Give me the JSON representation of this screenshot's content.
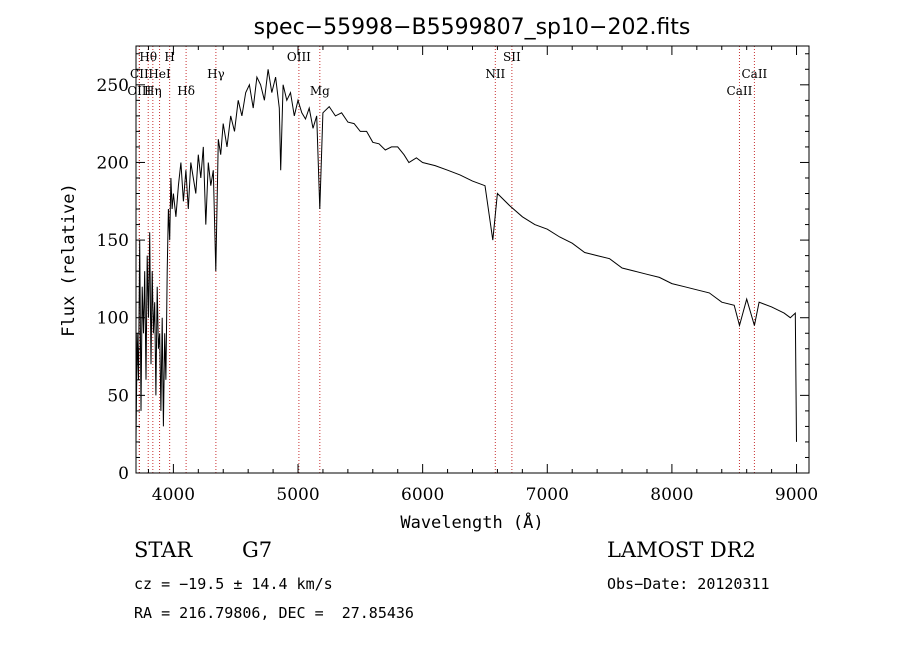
{
  "chart_data": {
    "type": "line",
    "title": "spec−55998−B5599807_sp10−202.fits",
    "xlabel": "Wavelength (Å)",
    "ylabel": "Flux (relative)",
    "xlim": [
      3700,
      9100
    ],
    "ylim": [
      0,
      275
    ],
    "xticks": [
      4000,
      5000,
      6000,
      7000,
      8000,
      9000
    ],
    "yticks": [
      0,
      50,
      100,
      150,
      200,
      250
    ],
    "xtick_labels": [
      "4000",
      "5000",
      "6000",
      "7000",
      "8000",
      "9000"
    ],
    "ytick_labels": [
      "0",
      "50",
      "100",
      "150",
      "200",
      "250"
    ],
    "line_color": "#000000",
    "marker_color": "#c83232",
    "series": [
      {
        "x": [
          3700,
          3710,
          3720,
          3730,
          3740,
          3750,
          3760,
          3770,
          3780,
          3790,
          3800,
          3810,
          3820,
          3830,
          3840,
          3850,
          3860,
          3870,
          3880,
          3890,
          3900,
          3910,
          3920,
          3930,
          3940,
          3950,
          3960,
          3970,
          3980,
          3990,
          4000,
          4020,
          4040,
          4060,
          4080,
          4100,
          4120,
          4140,
          4160,
          4180,
          4200,
          4220,
          4240,
          4260,
          4280,
          4300,
          4320,
          4340,
          4360,
          4380,
          4400,
          4430,
          4460,
          4490,
          4520,
          4550,
          4580,
          4610,
          4640,
          4670,
          4700,
          4730,
          4760,
          4790,
          4820,
          4850,
          4861,
          4880,
          4910,
          4940,
          4970,
          5000,
          5030,
          5060,
          5090,
          5120,
          5150,
          5175,
          5200,
          5250,
          5300,
          5350,
          5400,
          5450,
          5500,
          5550,
          5600,
          5650,
          5700,
          5750,
          5800,
          5850,
          5890,
          5950,
          6000,
          6100,
          6200,
          6300,
          6400,
          6500,
          6563,
          6600,
          6700,
          6800,
          6900,
          7000,
          7100,
          7200,
          7300,
          7400,
          7500,
          7600,
          7700,
          7800,
          7900,
          8000,
          8100,
          8200,
          8300,
          8400,
          8500,
          8542,
          8600,
          8662,
          8700,
          8800,
          8900,
          8950,
          8990,
          9000
        ],
        "y": [
          20,
          90,
          60,
          150,
          40,
          120,
          90,
          130,
          60,
          140,
          100,
          155,
          70,
          130,
          90,
          110,
          50,
          120,
          80,
          90,
          40,
          100,
          30,
          90,
          60,
          130,
          170,
          150,
          190,
          170,
          180,
          165,
          185,
          200,
          175,
          195,
          170,
          200,
          190,
          180,
          205,
          190,
          210,
          160,
          200,
          185,
          195,
          130,
          215,
          205,
          225,
          210,
          230,
          220,
          240,
          230,
          245,
          250,
          235,
          255,
          250,
          240,
          260,
          245,
          255,
          235,
          195,
          250,
          240,
          245,
          230,
          240,
          232,
          228,
          235,
          222,
          230,
          170,
          232,
          236,
          230,
          232,
          226,
          225,
          220,
          220,
          213,
          212,
          208,
          210,
          210,
          205,
          200,
          203,
          200,
          198,
          195,
          192,
          188,
          185,
          150,
          180,
          172,
          165,
          160,
          157,
          152,
          148,
          142,
          140,
          138,
          132,
          130,
          128,
          126,
          122,
          120,
          118,
          116,
          110,
          108,
          95,
          112,
          95,
          110,
          107,
          103,
          100,
          103,
          20
        ]
      }
    ],
    "lines": [
      {
        "label": "Hθ",
        "x": 3798,
        "row": 1
      },
      {
        "label": "H",
        "x": 3970,
        "row": 1
      },
      {
        "label": "OIII",
        "x": 5007,
        "row": 1
      },
      {
        "label": "NII",
        "x": 6583,
        "row": 2
      },
      {
        "label": "SII",
        "x": 6716,
        "row": 1
      },
      {
        "label": "CaII",
        "x": 8662,
        "row": 2
      },
      {
        "label": "CII",
        "x": 3727,
        "row": 2
      },
      {
        "label": "HeI",
        "x": 3889,
        "row": 2
      },
      {
        "label": "Hγ",
        "x": 4341,
        "row": 2
      },
      {
        "label": "OIII",
        "x": 3727,
        "row": 3
      },
      {
        "label": "Hη",
        "x": 3835,
        "row": 3
      },
      {
        "label": "Hδ",
        "x": 4102,
        "row": 3
      },
      {
        "label": "Mg",
        "x": 5175,
        "row": 3
      },
      {
        "label": "CaII",
        "x": 8542,
        "row": 3
      }
    ]
  },
  "info": {
    "class": "STAR",
    "subclass": "G7",
    "survey": "LAMOST DR2",
    "cz": "cz = −19.5 ± 14.4 km/s",
    "obs_date": "Obs−Date: 20120311",
    "coords": "RA = 216.79806, DEC =  27.85436"
  }
}
